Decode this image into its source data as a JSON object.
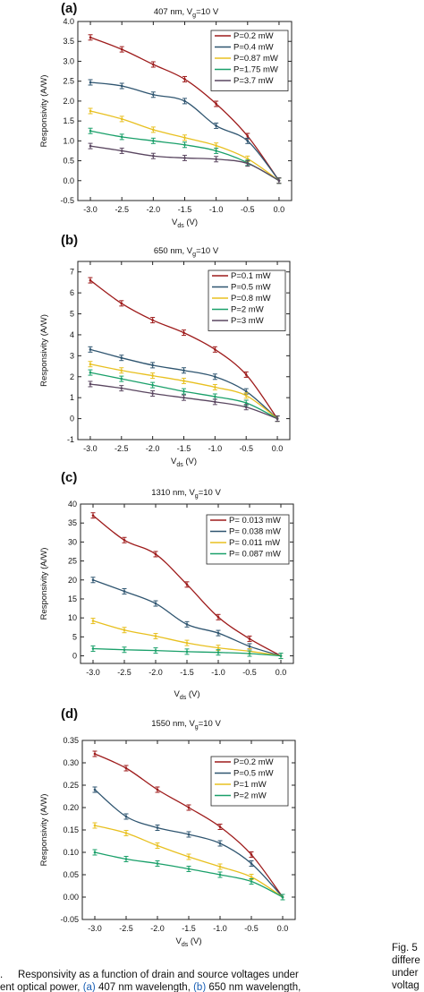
{
  "chart_data": [
    {
      "type": "line",
      "panel_label": "(a)",
      "title": "407 nm, V",
      "title_sub": "g",
      "title_tail": "=10 V",
      "xlabel": "V",
      "xlabel_sub": "ds",
      "xlabel_tail": " (V)",
      "ylabel": "Responsivity (A/W)",
      "xlim": [
        -3.2,
        0.2
      ],
      "ylim": [
        -0.5,
        4.0
      ],
      "xticks": [
        -3.0,
        -2.5,
        -2.0,
        -1.5,
        -1.0,
        -0.5,
        0.0
      ],
      "xtick_labels": [
        "-3.0",
        "-2.5",
        "-2.0",
        "-1.5",
        "-1.0",
        "-0.5",
        "0.0"
      ],
      "yticks": [
        -0.5,
        0.0,
        0.5,
        1.0,
        1.5,
        2.0,
        2.5,
        3.0,
        3.5,
        4.0
      ],
      "ytick_labels": [
        "-0.5",
        "0.0",
        "0.5",
        "1.0",
        "1.5",
        "2.0",
        "2.5",
        "3.0",
        "3.5",
        "4.0"
      ],
      "x": [
        -3.0,
        -2.5,
        -2.0,
        -1.5,
        -1.0,
        -0.5,
        0.0
      ],
      "legend_position": "top-right",
      "series": [
        {
          "name": "P=0.2 mW",
          "color": "#9e1b1b",
          "values": [
            3.6,
            3.3,
            2.92,
            2.55,
            1.93,
            1.12,
            0.0
          ]
        },
        {
          "name": "P=0.4 mW",
          "color": "#2f5570",
          "values": [
            2.47,
            2.38,
            2.16,
            2.0,
            1.38,
            1.0,
            0.0
          ]
        },
        {
          "name": "P=0.87 mW",
          "color": "#e8c020",
          "values": [
            1.75,
            1.55,
            1.28,
            1.08,
            0.88,
            0.55,
            0.0
          ]
        },
        {
          "name": "P=1.75 mW",
          "color": "#1aa06a",
          "values": [
            1.25,
            1.1,
            1.0,
            0.9,
            0.75,
            0.45,
            0.0
          ]
        },
        {
          "name": "P=3.7 mW",
          "color": "#5a4660",
          "values": [
            0.87,
            0.75,
            0.62,
            0.57,
            0.54,
            0.43,
            0.0
          ]
        }
      ]
    },
    {
      "type": "line",
      "panel_label": "(b)",
      "title": "650 nm, V",
      "title_sub": "g",
      "title_tail": "=10 V",
      "xlabel": "V",
      "xlabel_sub": "ds",
      "xlabel_tail": " (V)",
      "ylabel": "Responsivity (A/W)",
      "xlim": [
        -3.2,
        0.2
      ],
      "ylim": [
        -1,
        7.5
      ],
      "xticks": [
        -3.0,
        -2.5,
        -2.0,
        -1.5,
        -1.0,
        -0.5,
        0.0
      ],
      "xtick_labels": [
        "-3.0",
        "-2.5",
        "-2.0",
        "-1.5",
        "-1.0",
        "-0.5",
        "0.0"
      ],
      "yticks": [
        -1,
        0,
        1,
        2,
        3,
        4,
        5,
        6,
        7
      ],
      "ytick_labels": [
        "-1",
        "0",
        "1",
        "2",
        "3",
        "4",
        "5",
        "6",
        "7"
      ],
      "x": [
        -3.0,
        -2.5,
        -2.0,
        -1.5,
        -1.0,
        -0.5,
        0.0
      ],
      "legend_position": "top-right",
      "series": [
        {
          "name": "P=0.1 mW",
          "color": "#9e1b1b",
          "values": [
            6.6,
            5.5,
            4.7,
            4.1,
            3.3,
            2.1,
            0.0
          ]
        },
        {
          "name": "P=0.5 mW",
          "color": "#2f5570",
          "values": [
            3.3,
            2.9,
            2.55,
            2.3,
            2.0,
            1.3,
            0.0
          ]
        },
        {
          "name": "P=0.8 mW",
          "color": "#e8c020",
          "values": [
            2.6,
            2.3,
            2.05,
            1.8,
            1.5,
            1.1,
            0.0
          ]
        },
        {
          "name": "P=2 mW",
          "color": "#1aa06a",
          "values": [
            2.2,
            1.9,
            1.6,
            1.3,
            1.05,
            0.75,
            0.0
          ]
        },
        {
          "name": "P=3 mW",
          "color": "#5a4660",
          "values": [
            1.65,
            1.45,
            1.2,
            1.0,
            0.8,
            0.55,
            0.0
          ]
        }
      ]
    },
    {
      "type": "line",
      "panel_label": "(c)",
      "title": "1310 nm, V",
      "title_sub": "g",
      "title_tail": "=10 V",
      "xlabel": "V",
      "xlabel_sub": "ds",
      "xlabel_tail": " (V)",
      "ylabel": "Responsivity (A/W)",
      "xlim": [
        -3.2,
        0.2
      ],
      "ylim": [
        -2,
        40
      ],
      "xticks": [
        -3.0,
        -2.5,
        -2.0,
        -1.5,
        -1.0,
        -0.5,
        0.0
      ],
      "xtick_labels": [
        "-3.0",
        "-2.5",
        "-2.0",
        "-1.5",
        "-1.0",
        "-0.5",
        "0.0"
      ],
      "yticks": [
        0,
        5,
        10,
        15,
        20,
        25,
        30,
        35,
        40
      ],
      "ytick_labels": [
        "0",
        "5",
        "10",
        "15",
        "20",
        "25",
        "30",
        "35",
        "40"
      ],
      "x": [
        -3.0,
        -2.5,
        -2.0,
        -1.5,
        -1.0,
        -0.5,
        0.0
      ],
      "legend_position": "top-right",
      "series": [
        {
          "name": "P= 0.013 mW",
          "color": "#9e1b1b",
          "values": [
            37.0,
            30.5,
            26.8,
            18.8,
            10.2,
            4.5,
            0.0
          ]
        },
        {
          "name": "P= 0.038 mW",
          "color": "#2f5570",
          "values": [
            20.0,
            17.0,
            13.8,
            8.3,
            6.0,
            2.5,
            0.0
          ]
        },
        {
          "name": "P= 0.011 mW",
          "color": "#e8c020",
          "values": [
            9.2,
            6.8,
            5.2,
            3.4,
            2.1,
            1.2,
            0.0
          ]
        },
        {
          "name": "P= 0.087 mW",
          "color": "#1aa06a",
          "values": [
            1.9,
            1.6,
            1.4,
            1.1,
            0.9,
            0.6,
            0.0
          ]
        }
      ]
    },
    {
      "type": "line",
      "panel_label": "(d)",
      "title": "1550 nm, V",
      "title_sub": "g",
      "title_tail": "=10 V",
      "xlabel": "V",
      "xlabel_sub": "ds",
      "xlabel_tail": " (V)",
      "ylabel": "Responsivity (A/W)",
      "xlim": [
        -3.2,
        0.2
      ],
      "ylim": [
        -0.05,
        0.35
      ],
      "xticks": [
        -3.0,
        -2.5,
        -2.0,
        -1.5,
        -1.0,
        -0.5,
        0.0
      ],
      "xtick_labels": [
        "-3.0",
        "-2.5",
        "-2.0",
        "-1.5",
        "-1.0",
        "-0.5",
        "0.0"
      ],
      "yticks": [
        -0.05,
        0.0,
        0.05,
        0.1,
        0.15,
        0.2,
        0.25,
        0.3,
        0.35
      ],
      "ytick_labels": [
        "-0.05",
        "0.00",
        "0.05",
        "0.10",
        "0.15",
        "0.20",
        "0.25",
        "0.30",
        "0.35"
      ],
      "x": [
        -3.0,
        -2.5,
        -2.0,
        -1.5,
        -1.0,
        -0.5,
        0.0
      ],
      "legend_position": "top-right",
      "series": [
        {
          "name": "P=0.2 mW",
          "color": "#9e1b1b",
          "values": [
            0.32,
            0.288,
            0.24,
            0.2,
            0.157,
            0.095,
            0.0
          ]
        },
        {
          "name": "P=0.5 mW",
          "color": "#2f5570",
          "values": [
            0.24,
            0.18,
            0.155,
            0.14,
            0.12,
            0.075,
            0.0
          ]
        },
        {
          "name": "P=1 mW",
          "color": "#e8c020",
          "values": [
            0.16,
            0.143,
            0.115,
            0.09,
            0.068,
            0.045,
            0.0
          ]
        },
        {
          "name": "P=2 mW",
          "color": "#1aa06a",
          "values": [
            0.1,
            0.085,
            0.075,
            0.063,
            0.05,
            0.035,
            0.0
          ]
        }
      ]
    }
  ],
  "caption": {
    "line1_prefix": ".",
    "line1_text": "Responsivity as a function of drain and source voltages under",
    "line2_start": "ent optical power, ",
    "line2_link1": "(a)",
    "line2_mid1": " 407 nm wavelength, ",
    "line2_link2": "(b)",
    "line2_mid2": " 650 nm wavelength,",
    "side_line1": "Fig. 5",
    "side_line2": "differe",
    "side_line3": "under",
    "side_line4": "voltag"
  }
}
